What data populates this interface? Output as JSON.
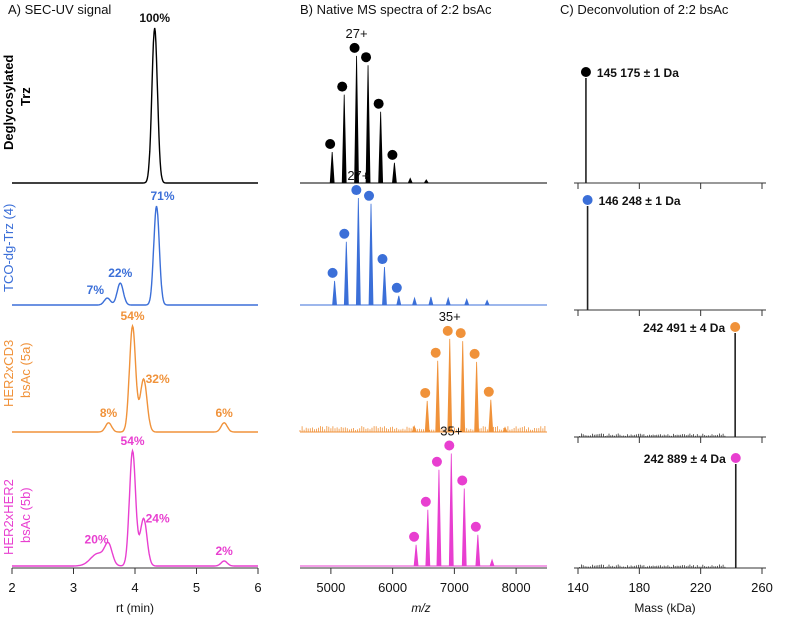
{
  "chart_data": [
    {
      "type": "line",
      "title": "A) SEC-UV signal",
      "xlabel": "rt (min)",
      "xlim": [
        2,
        6
      ],
      "xticks": [
        "2",
        "3",
        "4",
        "5",
        "6"
      ],
      "grid": false,
      "series": [
        {
          "name": "Deglycosylated Trz",
          "color": "#000000",
          "peaks": [
            {
              "x": 4.32,
              "height": 1.0,
              "width": 0.045,
              "label": "100%"
            }
          ]
        },
        {
          "name": "TCO-dg-Trz (4)",
          "color": "#3b6fd8",
          "peaks": [
            {
              "x": 3.55,
              "height": 0.06,
              "width": 0.05,
              "label": "7%"
            },
            {
              "x": 3.76,
              "height": 0.19,
              "width": 0.05,
              "label": "22%"
            },
            {
              "x": 4.35,
              "height": 0.86,
              "width": 0.045,
              "label": "71%"
            }
          ]
        },
        {
          "name": "HER2xCD3 bsAc (5a)",
          "color": "#f0923a",
          "peaks": [
            {
              "x": 3.57,
              "height": 0.08,
              "width": 0.05,
              "label": "8%"
            },
            {
              "x": 3.96,
              "height": 0.92,
              "width": 0.05,
              "label": "54%"
            },
            {
              "x": 4.14,
              "height": 0.46,
              "width": 0.055,
              "label": "32%"
            },
            {
              "x": 5.45,
              "height": 0.08,
              "width": 0.05,
              "label": "6%"
            }
          ]
        },
        {
          "name": "HER2xHER2 bsAc (5b)",
          "color": "#e83fd0",
          "peaks": [
            {
              "x": 3.4,
              "height": 0.1,
              "width": 0.12,
              "label": ""
            },
            {
              "x": 3.57,
              "height": 0.15,
              "width": 0.06,
              "label": "20%"
            },
            {
              "x": 3.96,
              "height": 0.92,
              "width": 0.05,
              "label": "54%"
            },
            {
              "x": 4.14,
              "height": 0.38,
              "width": 0.055,
              "label": "24%"
            },
            {
              "x": 5.45,
              "height": 0.04,
              "width": 0.05,
              "label": "2%"
            }
          ]
        }
      ]
    },
    {
      "type": "bar",
      "title": "B) Native MS spectra of 2:2 bsAc",
      "xlabel": "m/z",
      "xlim": [
        4500,
        8500
      ],
      "xticks": [
        "5000",
        "6000",
        "7000",
        "8000"
      ],
      "grid": false,
      "series": [
        {
          "name": "Deglycosylated Trz",
          "color": "#000000",
          "charge_label": "27+",
          "mz": [
            5021,
            5216,
            5416,
            5602,
            5806,
            6029,
            6285,
            6545
          ],
          "rel": [
            0.2,
            0.57,
            0.82,
            0.76,
            0.46,
            0.13,
            0.03,
            0.02
          ],
          "marked": [
            true,
            true,
            true,
            true,
            true,
            true,
            false,
            false
          ]
        },
        {
          "name": "TCO-dg-Trz (4)",
          "color": "#3b6fd8",
          "charge_label": "27+",
          "mz": [
            5060,
            5250,
            5445,
            5650,
            5868,
            6100,
            6355,
            6620,
            6900,
            7200,
            7530
          ],
          "rel": [
            0.21,
            0.55,
            0.93,
            0.88,
            0.33,
            0.08,
            0.06,
            0.07,
            0.06,
            0.05,
            0.04
          ],
          "marked": [
            true,
            true,
            true,
            true,
            true,
            true,
            false,
            false,
            false,
            false,
            false
          ]
        },
        {
          "name": "HER2xCD3 bsAc (5a)",
          "color": "#f0923a",
          "charge_label": "35+",
          "mz": [
            6350,
            6560,
            6730,
            6925,
            7135,
            7360,
            7590,
            7820
          ],
          "rel": [
            0.05,
            0.27,
            0.62,
            0.81,
            0.79,
            0.61,
            0.28,
            0.04
          ],
          "marked": [
            false,
            true,
            true,
            true,
            true,
            true,
            true,
            false
          ]
        },
        {
          "name": "HER2xHER2 bsAc (5b)",
          "color": "#e83fd0",
          "charge_label": "35+",
          "mz": [
            6380,
            6570,
            6750,
            6950,
            7160,
            7380,
            7610
          ],
          "rel": [
            0.17,
            0.45,
            0.77,
            0.9,
            0.62,
            0.25,
            0.05
          ],
          "marked": [
            true,
            true,
            true,
            true,
            true,
            true,
            false
          ]
        }
      ]
    },
    {
      "type": "bar",
      "title": "C) Deconvolution of 2:2 bsAc",
      "xlabel": "Mass (kDa)",
      "xlim": [
        140,
        260
      ],
      "xticks": [
        "140",
        "180",
        "220",
        "260"
      ],
      "grid": false,
      "series": [
        {
          "name": "Deglycosylated Trz",
          "color": "#000000",
          "mass_kda": 145.175,
          "mass_label": "145 175 ± 1 Da"
        },
        {
          "name": "TCO-dg-Trz (4)",
          "color": "#3b6fd8",
          "mass_kda": 146.248,
          "mass_label": "146 248 ± 1 Da"
        },
        {
          "name": "HER2xCD3 bsAc (5a)",
          "color": "#f0923a",
          "mass_kda": 242.491,
          "mass_label": "242 491 ± 4 Da"
        },
        {
          "name": "HER2xHER2 bsAc (5b)",
          "color": "#e83fd0",
          "mass_kda": 242.889,
          "mass_label": "242 889 ± 4 Da"
        }
      ]
    }
  ],
  "row_labels": [
    {
      "line1": "Deglycosylated",
      "line2": "Trz",
      "color": "#000000",
      "bold": true
    },
    {
      "line1": "TCO-dg-Trz (4)",
      "line2": "",
      "color": "#3b6fd8",
      "bold": false
    },
    {
      "line1": "HER2xCD3",
      "line2": "bsAc (5a)",
      "color": "#f0923a",
      "bold": false
    },
    {
      "line1": "HER2xHER2",
      "line2": "bsAc (5b)",
      "color": "#e83fd0",
      "bold": false
    }
  ]
}
